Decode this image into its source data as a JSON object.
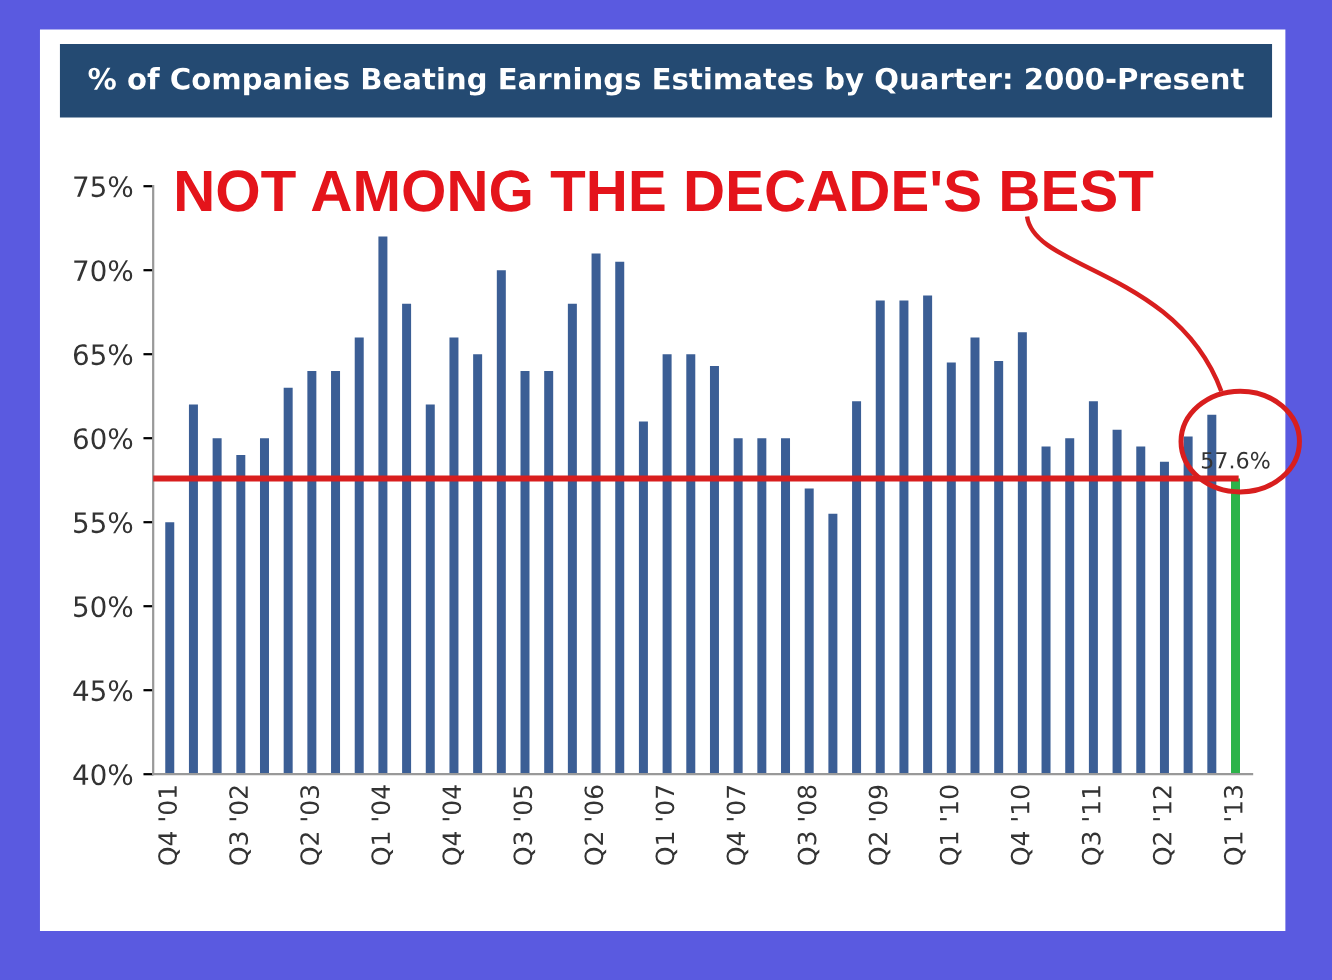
{
  "chart_data": {
    "type": "bar",
    "title": "% of Companies Beating Earnings Estimates by Quarter: 2000-Present",
    "annotations": [
      "NOT AMONG THE DECADE'S BEST"
    ],
    "categories": [
      "Q4 '01",
      null,
      null,
      "Q3 '02",
      null,
      null,
      "Q2 '03",
      null,
      null,
      "Q1 '04",
      null,
      null,
      "Q4 '04",
      null,
      null,
      "Q3 '05",
      null,
      null,
      "Q2 '06",
      null,
      null,
      "Q1 '07",
      null,
      null,
      "Q4 '07",
      null,
      null,
      "Q3 '08",
      null,
      null,
      "Q2 '09",
      null,
      null,
      "Q1 '10",
      null,
      null,
      "Q4 '10",
      null,
      null,
      "Q3 '11",
      null,
      null,
      "Q2 '12",
      null,
      null,
      "Q1 '13"
    ],
    "values": [
      55,
      62,
      60,
      59,
      60,
      63,
      64,
      64,
      66,
      72,
      68,
      62,
      66,
      65,
      70,
      64,
      64,
      68,
      71,
      70.5,
      61,
      65,
      65,
      64.3,
      60,
      60,
      60,
      57,
      55.5,
      62.2,
      68.2,
      68.2,
      68.5,
      64.5,
      66,
      64.6,
      66.3,
      59.5,
      60,
      62.2,
      60.5,
      59.5,
      58.6,
      60.1,
      61.4,
      57.6
    ],
    "colors": [
      "#3b5e95",
      "#3b5e95",
      "#3b5e95",
      "#3b5e95",
      "#3b5e95",
      "#3b5e95",
      "#3b5e95",
      "#3b5e95",
      "#3b5e95",
      "#3b5e95",
      "#3b5e95",
      "#3b5e95",
      "#3b5e95",
      "#3b5e95",
      "#3b5e95",
      "#3b5e95",
      "#3b5e95",
      "#3b5e95",
      "#3b5e95",
      "#3b5e95",
      "#3b5e95",
      "#3b5e95",
      "#3b5e95",
      "#3b5e95",
      "#3b5e95",
      "#3b5e95",
      "#3b5e95",
      "#3b5e95",
      "#3b5e95",
      "#3b5e95",
      "#3b5e95",
      "#3b5e95",
      "#3b5e95",
      "#3b5e95",
      "#3b5e95",
      "#3b5e95",
      "#3b5e95",
      "#3b5e95",
      "#3b5e95",
      "#3b5e95",
      "#3b5e95",
      "#3b5e95",
      "#3b5e95",
      "#3b5e95",
      "#3b5e95",
      "#2cb34a"
    ],
    "value_labels": [
      null,
      null,
      null,
      null,
      null,
      null,
      null,
      null,
      null,
      null,
      null,
      null,
      null,
      null,
      null,
      null,
      null,
      null,
      null,
      null,
      null,
      null,
      null,
      null,
      null,
      null,
      null,
      null,
      null,
      null,
      null,
      null,
      null,
      null,
      null,
      null,
      null,
      null,
      null,
      null,
      null,
      null,
      null,
      null,
      null,
      "57.6%"
    ],
    "ylim": [
      40,
      75
    ],
    "yticks": [
      {
        "value": 40,
        "label": "40%"
      },
      {
        "value": 45,
        "label": "45%"
      },
      {
        "value": 50,
        "label": "50%"
      },
      {
        "value": 55,
        "label": "55%"
      },
      {
        "value": 60,
        "label": "60%"
      },
      {
        "value": 65,
        "label": "65%"
      },
      {
        "value": 70,
        "label": "70%"
      },
      {
        "value": 75,
        "label": "75%"
      }
    ],
    "ref_lines": [
      {
        "axis": "y",
        "value": 57.6,
        "color": "#d81e1e"
      }
    ],
    "grid": false,
    "legend": false
  }
}
